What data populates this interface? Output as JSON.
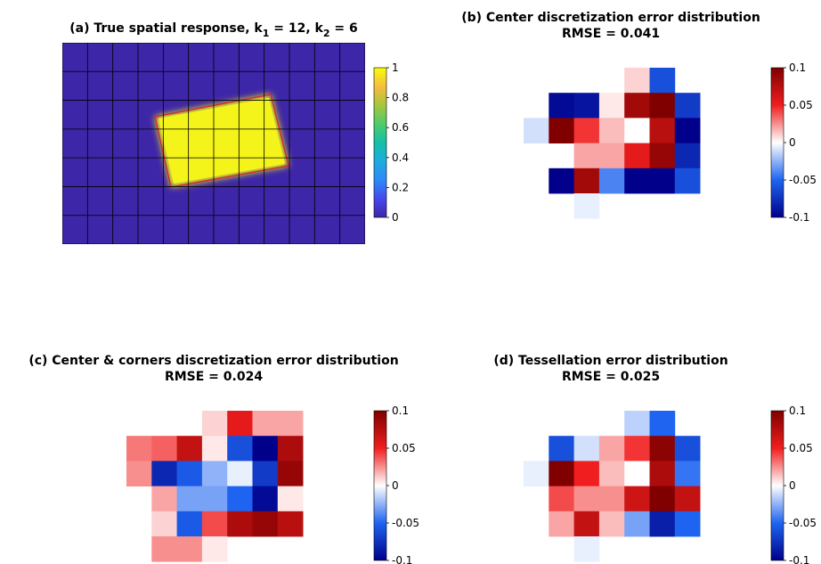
{
  "figure_colors": {
    "background": "#ffffff",
    "rectangle_edge": "#d62828",
    "colormap_a": "parula",
    "colormap_error": "blue-white-red diverging"
  },
  "chart_data": [
    {
      "type": "heatmap",
      "id": "a",
      "title_prefix": "(a) True spatial response, k",
      "title_sub1": "1",
      "title_mid": " = 12, k",
      "title_sub2": "2",
      "title_suffix": " = 6",
      "grid_cols": 12,
      "grid_rows": 7,
      "grid_on": true,
      "description_values": "response 1 inside a tilted rectangle, 0 outside",
      "colorbar": {
        "ticks": [
          "0",
          "0.2",
          "0.4",
          "0.6",
          "0.8",
          "1"
        ],
        "clim": [
          0,
          1
        ]
      }
    },
    {
      "type": "heatmap",
      "id": "b",
      "title": "(b) Center discretization error distribution",
      "subtitle": "RMSE = 0.041",
      "colorbar": {
        "ticks": [
          "0.1",
          "0.05",
          "0",
          "-0.05",
          "-0.1"
        ],
        "clim": [
          -0.1,
          0.1
        ]
      },
      "rows": [
        [
          null,
          null,
          null,
          null,
          0.01,
          -0.06,
          null,
          null
        ],
        [
          null,
          -0.095,
          -0.09,
          0.005,
          0.085,
          0.1,
          -0.07,
          null
        ],
        [
          -0.01,
          0.1,
          0.045,
          0.015,
          0.0,
          0.075,
          -0.1,
          null
        ],
        [
          null,
          null,
          0.02,
          0.02,
          0.055,
          0.09,
          -0.08,
          null
        ],
        [
          null,
          -0.1,
          0.085,
          -0.04,
          -0.1,
          -0.1,
          -0.06,
          null
        ],
        [
          null,
          null,
          -0.005,
          null,
          null,
          null,
          null,
          null
        ]
      ]
    },
    {
      "type": "heatmap",
      "id": "c",
      "title": "(c) Center & corners discretization error distribution",
      "subtitle": "RMSE = 0.024",
      "colorbar": {
        "ticks": [
          "0.1",
          "0.05",
          "0",
          "-0.05",
          "-0.1"
        ],
        "clim": [
          -0.1,
          0.1
        ]
      },
      "rows": [
        [
          null,
          null,
          null,
          0.01,
          0.055,
          0.02,
          0.02,
          null
        ],
        [
          0.03,
          0.035,
          0.07,
          0.005,
          -0.06,
          -0.1,
          0.08,
          null
        ],
        [
          0.025,
          -0.08,
          -0.055,
          -0.025,
          -0.005,
          -0.07,
          0.09,
          null
        ],
        [
          null,
          0.02,
          -0.03,
          -0.03,
          -0.05,
          -0.095,
          0.005,
          null
        ],
        [
          null,
          0.01,
          -0.055,
          0.04,
          0.08,
          0.09,
          0.075,
          null
        ],
        [
          null,
          0.025,
          0.025,
          0.005,
          null,
          null,
          null,
          null
        ]
      ]
    },
    {
      "type": "heatmap",
      "id": "d",
      "title": "(d) Tessellation error distribution",
      "subtitle": "RMSE = 0.025",
      "colorbar": {
        "ticks": [
          "0.1",
          "0.05",
          "0",
          "-0.05",
          "-0.1"
        ],
        "clim": [
          -0.1,
          0.1
        ]
      },
      "rows": [
        [
          null,
          null,
          null,
          null,
          -0.015,
          -0.05,
          null,
          null
        ],
        [
          null,
          -0.06,
          -0.01,
          0.02,
          0.045,
          0.095,
          -0.06,
          null
        ],
        [
          -0.005,
          0.1,
          0.05,
          0.015,
          0.0,
          0.08,
          -0.045,
          null
        ],
        [
          null,
          0.04,
          0.025,
          0.025,
          0.065,
          0.1,
          0.07,
          null
        ],
        [
          null,
          0.02,
          0.07,
          0.015,
          -0.03,
          -0.085,
          -0.05,
          null
        ],
        [
          null,
          null,
          -0.005,
          null,
          null,
          null,
          null,
          null
        ]
      ]
    }
  ]
}
